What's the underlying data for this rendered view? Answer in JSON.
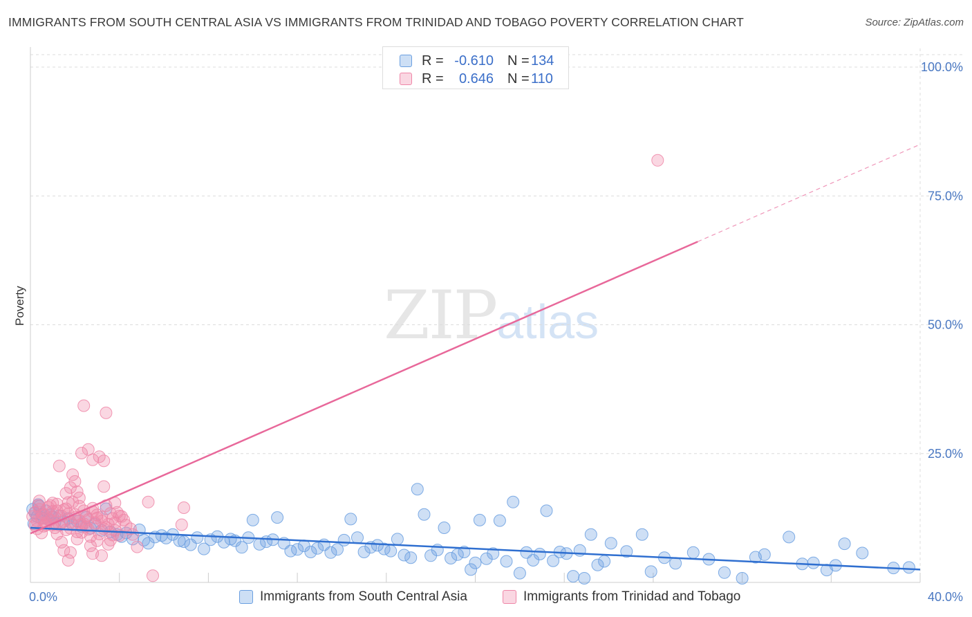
{
  "header": {
    "title": "IMMIGRANTS FROM SOUTH CENTRAL ASIA VS IMMIGRANTS FROM TRINIDAD AND TOBAGO POVERTY CORRELATION CHART",
    "source": "Source: ZipAtlas.com"
  },
  "watermark": {
    "zip": "ZIP",
    "atlas": "atlas"
  },
  "legend": {
    "r_label": "R =",
    "n_label": "N =",
    "series": [
      {
        "name": "Immigrants from South Central Asia",
        "r": "-0.610",
        "n": "134",
        "color": "#6a9fe0"
      },
      {
        "name": "Immigrants from Trinidad and Tobago",
        "r": "0.646",
        "n": "110",
        "color": "#ef86a7"
      }
    ]
  },
  "chart_data": {
    "type": "scatter",
    "title": "IMMIGRANTS FROM SOUTH CENTRAL ASIA VS IMMIGRANTS FROM TRINIDAD AND TOBAGO POVERTY CORRELATION CHART",
    "xlabel": "",
    "ylabel": "Poverty",
    "xlim": [
      0,
      40
    ],
    "ylim": [
      0,
      100
    ],
    "x_tick_labels": [
      "0.0%",
      "40.0%"
    ],
    "y_tick_labels": [
      "100.0%",
      "75.0%",
      "50.0%",
      "25.0%"
    ],
    "y_ticks": [
      100,
      75,
      50,
      25
    ],
    "grid": true,
    "series": [
      {
        "name": "Immigrants from South Central Asia",
        "color": "#6a9fe0",
        "r": -0.61,
        "n": 134,
        "trend": {
          "x0": 0,
          "y0": 10.6,
          "x1": 40,
          "y1": 2.5,
          "solid_until": 40
        },
        "points": [
          [
            0.1,
            14.2
          ],
          [
            0.2,
            13.5
          ],
          [
            0.3,
            12.8
          ],
          [
            0.4,
            14.8
          ],
          [
            0.5,
            13.2
          ],
          [
            0.6,
            12.5
          ],
          [
            0.7,
            13.9
          ],
          [
            0.8,
            12.2
          ],
          [
            0.9,
            13.1
          ],
          [
            1.0,
            12.7
          ],
          [
            1.1,
            11.6
          ],
          [
            1.3,
            12.9
          ],
          [
            1.5,
            11.8
          ],
          [
            1.7,
            12.4
          ],
          [
            1.9,
            11.2
          ],
          [
            2.1,
            11.9
          ],
          [
            2.3,
            10.8
          ],
          [
            2.5,
            12.6
          ],
          [
            2.7,
            10.5
          ],
          [
            2.9,
            11.3
          ],
          [
            3.2,
            10.1
          ],
          [
            3.4,
            14.3
          ],
          [
            3.6,
            9.8
          ],
          [
            3.9,
            9.3
          ],
          [
            4.1,
            8.9
          ],
          [
            4.3,
            9.6
          ],
          [
            4.6,
            8.4
          ],
          [
            4.9,
            10.2
          ],
          [
            5.1,
            8.2
          ],
          [
            5.3,
            7.6
          ],
          [
            5.6,
            8.8
          ],
          [
            5.9,
            9.1
          ],
          [
            6.1,
            8.6
          ],
          [
            6.4,
            9.3
          ],
          [
            6.7,
            8.1
          ],
          [
            6.9,
            7.9
          ],
          [
            7.2,
            7.3
          ],
          [
            7.5,
            8.7
          ],
          [
            7.8,
            6.5
          ],
          [
            8.1,
            8.3
          ],
          [
            8.4,
            8.9
          ],
          [
            8.7,
            7.8
          ],
          [
            9.0,
            8.4
          ],
          [
            9.2,
            8.1
          ],
          [
            9.5,
            6.8
          ],
          [
            9.8,
            8.7
          ],
          [
            10.0,
            12.1
          ],
          [
            10.3,
            7.4
          ],
          [
            10.6,
            7.9
          ],
          [
            10.9,
            8.3
          ],
          [
            11.1,
            12.6
          ],
          [
            11.4,
            7.6
          ],
          [
            11.7,
            6.1
          ],
          [
            12.0,
            6.4
          ],
          [
            12.3,
            7.1
          ],
          [
            12.6,
            5.9
          ],
          [
            12.9,
            6.6
          ],
          [
            13.2,
            7.3
          ],
          [
            13.5,
            5.8
          ],
          [
            13.8,
            6.4
          ],
          [
            14.1,
            8.2
          ],
          [
            14.4,
            12.3
          ],
          [
            14.7,
            8.7
          ],
          [
            15.0,
            5.9
          ],
          [
            15.3,
            6.8
          ],
          [
            15.6,
            7.2
          ],
          [
            15.9,
            6.5
          ],
          [
            16.2,
            6.1
          ],
          [
            16.5,
            8.4
          ],
          [
            16.8,
            5.3
          ],
          [
            17.1,
            4.8
          ],
          [
            17.4,
            18.1
          ],
          [
            17.7,
            13.2
          ],
          [
            18.0,
            5.2
          ],
          [
            18.3,
            6.3
          ],
          [
            18.6,
            10.6
          ],
          [
            18.9,
            4.7
          ],
          [
            19.2,
            5.4
          ],
          [
            19.5,
            5.9
          ],
          [
            19.8,
            2.5
          ],
          [
            20.0,
            3.8
          ],
          [
            20.2,
            12.1
          ],
          [
            20.5,
            4.6
          ],
          [
            20.8,
            5.6
          ],
          [
            21.1,
            12.0
          ],
          [
            21.4,
            4.1
          ],
          [
            21.7,
            15.6
          ],
          [
            22.0,
            1.8
          ],
          [
            22.3,
            5.8
          ],
          [
            22.6,
            4.3
          ],
          [
            22.9,
            5.5
          ],
          [
            23.2,
            13.9
          ],
          [
            23.5,
            4.2
          ],
          [
            23.8,
            5.9
          ],
          [
            24.1,
            5.6
          ],
          [
            24.4,
            1.2
          ],
          [
            24.7,
            6.2
          ],
          [
            24.9,
            0.8
          ],
          [
            25.2,
            9.3
          ],
          [
            25.5,
            3.4
          ],
          [
            25.8,
            4.1
          ],
          [
            26.1,
            7.6
          ],
          [
            26.8,
            6.0
          ],
          [
            27.5,
            9.3
          ],
          [
            27.9,
            2.1
          ],
          [
            28.5,
            4.8
          ],
          [
            29.0,
            3.7
          ],
          [
            29.8,
            5.8
          ],
          [
            30.5,
            4.5
          ],
          [
            31.2,
            1.9
          ],
          [
            32.0,
            0.8
          ],
          [
            32.6,
            4.9
          ],
          [
            33.0,
            5.4
          ],
          [
            34.1,
            8.8
          ],
          [
            34.7,
            3.6
          ],
          [
            35.2,
            3.8
          ],
          [
            35.8,
            2.4
          ],
          [
            36.2,
            3.3
          ],
          [
            36.6,
            7.5
          ],
          [
            37.4,
            5.7
          ],
          [
            38.8,
            2.8
          ],
          [
            39.5,
            2.9
          ],
          [
            0.15,
            11.4
          ],
          [
            0.35,
            15.1
          ]
        ]
      },
      {
        "name": "Immigrants from Trinidad and Tobago",
        "color": "#ef86a7",
        "r": 0.646,
        "n": 110,
        "trend": {
          "x0": 0,
          "y0": 9.5,
          "x1": 40,
          "y1": 85.0,
          "solid_until": 30
        },
        "points": [
          [
            0.1,
            12.8
          ],
          [
            0.2,
            13.6
          ],
          [
            0.3,
            11.9
          ],
          [
            0.4,
            14.2
          ],
          [
            0.5,
            12.4
          ],
          [
            0.6,
            13.1
          ],
          [
            0.7,
            11.5
          ],
          [
            0.8,
            14.6
          ],
          [
            0.9,
            12.1
          ],
          [
            1.0,
            13.8
          ],
          [
            1.1,
            10.6
          ],
          [
            1.2,
            15.2
          ],
          [
            1.3,
            11.1
          ],
          [
            1.4,
            12.9
          ],
          [
            1.5,
            14.1
          ],
          [
            1.6,
            10.2
          ],
          [
            1.7,
            13.3
          ],
          [
            1.8,
            11.8
          ],
          [
            1.9,
            15.6
          ],
          [
            2.0,
            12.6
          ],
          [
            2.1,
            9.8
          ],
          [
            2.2,
            14.8
          ],
          [
            2.3,
            11.2
          ],
          [
            2.4,
            13.9
          ],
          [
            2.5,
            10.8
          ],
          [
            2.6,
            12.2
          ],
          [
            2.7,
            8.9
          ],
          [
            2.8,
            14.4
          ],
          [
            2.9,
            11.6
          ],
          [
            3.0,
            13.1
          ],
          [
            3.1,
            9.4
          ],
          [
            3.2,
            12.7
          ],
          [
            3.3,
            10.4
          ],
          [
            3.4,
            14.9
          ],
          [
            3.5,
            11.3
          ],
          [
            3.6,
            8.2
          ],
          [
            3.7,
            12.4
          ],
          [
            3.8,
            10.1
          ],
          [
            3.9,
            13.6
          ],
          [
            4.0,
            9.1
          ],
          [
            1.3,
            22.6
          ],
          [
            1.6,
            17.3
          ],
          [
            1.7,
            15.5
          ],
          [
            1.8,
            18.4
          ],
          [
            1.9,
            20.9
          ],
          [
            2.0,
            19.6
          ],
          [
            2.1,
            17.6
          ],
          [
            2.2,
            16.4
          ],
          [
            2.3,
            25.1
          ],
          [
            2.4,
            34.3
          ],
          [
            2.6,
            25.8
          ],
          [
            2.8,
            23.8
          ],
          [
            3.1,
            24.4
          ],
          [
            3.3,
            23.6
          ],
          [
            3.4,
            32.9
          ],
          [
            3.3,
            18.6
          ],
          [
            3.8,
            15.4
          ],
          [
            4.2,
            12.1
          ],
          [
            4.5,
            10.4
          ],
          [
            4.8,
            6.9
          ],
          [
            5.3,
            15.6
          ],
          [
            5.5,
            1.3
          ],
          [
            6.9,
            14.5
          ],
          [
            6.8,
            11.2
          ],
          [
            1.0,
            11.2
          ],
          [
            1.2,
            9.4
          ],
          [
            1.4,
            7.8
          ],
          [
            1.5,
            6.2
          ],
          [
            1.7,
            4.3
          ],
          [
            1.8,
            5.8
          ],
          [
            2.1,
            8.4
          ],
          [
            2.3,
            9.7
          ],
          [
            2.5,
            12.8
          ],
          [
            2.7,
            7.1
          ],
          [
            2.8,
            5.6
          ],
          [
            3.0,
            8.1
          ],
          [
            3.2,
            5.2
          ],
          [
            3.5,
            7.4
          ],
          [
            3.7,
            9.2
          ],
          [
            4.1,
            12.8
          ],
          [
            0.3,
            10.4
          ],
          [
            0.5,
            9.6
          ],
          [
            0.7,
            11.1
          ],
          [
            0.9,
            14.9
          ],
          [
            1.1,
            12.6
          ],
          [
            0.4,
            15.8
          ],
          [
            0.6,
            10.9
          ],
          [
            0.8,
            12.3
          ],
          [
            1.0,
            15.4
          ],
          [
            1.2,
            13.9
          ],
          [
            1.4,
            11.7
          ],
          [
            1.6,
            14.3
          ],
          [
            1.8,
            10.5
          ],
          [
            2.0,
            13.2
          ],
          [
            2.2,
            12.0
          ],
          [
            2.4,
            11.4
          ],
          [
            2.6,
            10.3
          ],
          [
            2.8,
            13.7
          ],
          [
            3.0,
            12.5
          ],
          [
            3.2,
            11.9
          ],
          [
            3.4,
            10.7
          ],
          [
            3.6,
            13.4
          ],
          [
            3.8,
            11.6
          ],
          [
            4.0,
            12.9
          ],
          [
            4.3,
            11.1
          ],
          [
            4.6,
            9.3
          ],
          [
            28.2,
            81.9
          ],
          [
            0.2,
            11.1
          ],
          [
            0.35,
            14.9
          ],
          [
            0.55,
            13.4
          ]
        ]
      }
    ]
  }
}
